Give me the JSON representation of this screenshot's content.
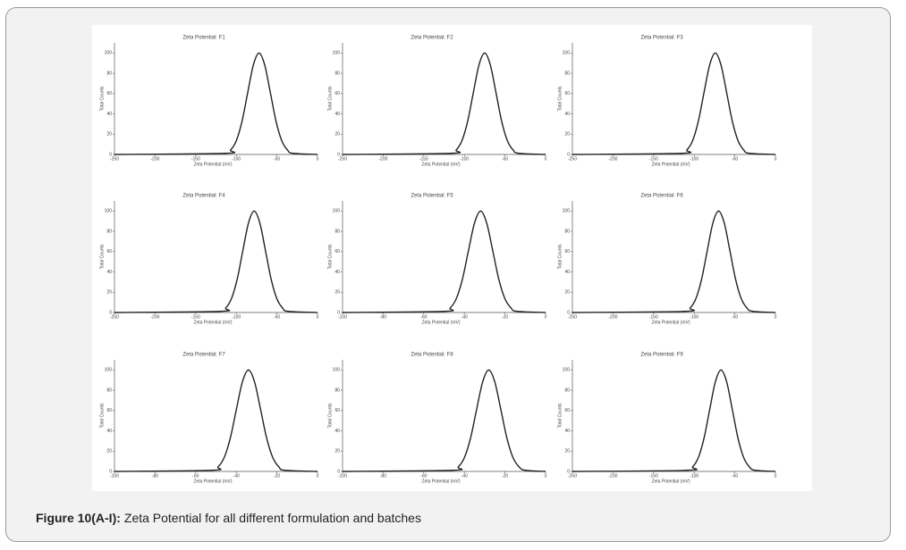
{
  "chart_data": [
    {
      "type": "line",
      "title": "Zeta Potential: F1",
      "x_label": "Zeta Potential (mV)",
      "y_label": "Total Counts",
      "x": [
        -250,
        -114,
        -107,
        -100,
        -93,
        -86,
        -79,
        -72,
        -65,
        -58,
        -51,
        -44,
        -37,
        -30,
        0
      ],
      "values": [
        0,
        1.1,
        4.4,
        13.5,
        32.5,
        60.7,
        88.2,
        100,
        88.2,
        60.7,
        32.5,
        13.5,
        4.4,
        1.1,
        0
      ],
      "color": "#222222",
      "xlim": [
        -250,
        0
      ],
      "xticks": [
        -250,
        -200,
        -150,
        -100,
        -50,
        0
      ],
      "ylim": [
        0,
        110
      ],
      "yticks": [
        0,
        20,
        40,
        60,
        80,
        100
      ]
    },
    {
      "type": "line",
      "title": "Zeta Potential: F2",
      "x_label": "Zeta Potential (mV)",
      "y_label": "Total Counts",
      "x": [
        -250,
        -117,
        -110,
        -103,
        -96,
        -89,
        -82,
        -75,
        -68,
        -61,
        -54,
        -47,
        -40,
        -33,
        0
      ],
      "values": [
        0,
        1.1,
        4.4,
        13.5,
        32.5,
        60.7,
        88.2,
        100,
        88.2,
        60.7,
        32.5,
        13.5,
        4.4,
        1.1,
        0
      ],
      "color": "#222222",
      "xlim": [
        -250,
        0
      ],
      "xticks": [
        -250,
        -200,
        -150,
        -100,
        -50,
        0
      ],
      "ylim": [
        0,
        110
      ],
      "yticks": [
        0,
        20,
        40,
        60,
        80,
        100
      ]
    },
    {
      "type": "line",
      "title": "Zeta Potential: F3",
      "x_label": "Zeta Potential (mV)",
      "y_label": "Total Counts",
      "x": [
        -250,
        -116,
        -109,
        -102,
        -95,
        -88,
        -81,
        -74,
        -67,
        -60,
        -53,
        -46,
        -39,
        -32,
        0
      ],
      "values": [
        0,
        1.1,
        4.4,
        13.5,
        32.5,
        60.7,
        88.2,
        100,
        88.2,
        60.7,
        32.5,
        13.5,
        4.4,
        1.1,
        0
      ],
      "color": "#222222",
      "xlim": [
        -250,
        0
      ],
      "xticks": [
        -250,
        -200,
        -150,
        -100,
        -50,
        0
      ],
      "ylim": [
        0,
        110
      ],
      "yticks": [
        0,
        20,
        40,
        60,
        80,
        100
      ]
    },
    {
      "type": "line",
      "title": "Zeta Potential: F4",
      "x_label": "Zeta Potential (mV)",
      "y_label": "Total Counts",
      "x": [
        -250,
        -120,
        -113,
        -106,
        -99,
        -92,
        -85,
        -78,
        -71,
        -64,
        -57,
        -50,
        -43,
        -36,
        0
      ],
      "values": [
        0,
        1.1,
        4.4,
        13.5,
        32.5,
        60.7,
        88.2,
        100,
        88.2,
        60.7,
        32.5,
        13.5,
        4.4,
        1.1,
        0
      ],
      "color": "#222222",
      "xlim": [
        -250,
        0
      ],
      "xticks": [
        -250,
        -200,
        -150,
        -100,
        -50,
        0
      ],
      "ylim": [
        0,
        110
      ],
      "yticks": [
        0,
        20,
        40,
        60,
        80,
        100
      ]
    },
    {
      "type": "line",
      "title": "Zeta Potential: F5",
      "x_label": "Zeta Potential (mV)",
      "y_label": "Total Counts",
      "x": [
        -100,
        -50,
        -47,
        -44,
        -41,
        -38,
        -35,
        -32,
        -29,
        -26,
        -23,
        -20,
        -17,
        -14,
        0
      ],
      "values": [
        0,
        1.1,
        4.4,
        13.5,
        32.5,
        60.7,
        88.2,
        100,
        88.2,
        60.7,
        32.5,
        13.5,
        4.4,
        1.1,
        0
      ],
      "color": "#222222",
      "xlim": [
        -100,
        0
      ],
      "xticks": [
        -100,
        -80,
        -60,
        -40,
        -20,
        0
      ],
      "ylim": [
        0,
        110
      ],
      "yticks": [
        0,
        20,
        40,
        60,
        80,
        100
      ]
    },
    {
      "type": "line",
      "title": "Zeta Potential: F6",
      "x_label": "Zeta Potential (mV)",
      "y_label": "Total Counts",
      "x": [
        -250,
        -112,
        -105,
        -98,
        -91,
        -84,
        -77,
        -70,
        -63,
        -56,
        -49,
        -42,
        -35,
        -28,
        0
      ],
      "values": [
        0,
        1.1,
        4.4,
        13.5,
        32.5,
        60.7,
        88.2,
        100,
        88.2,
        60.7,
        32.5,
        13.5,
        4.4,
        1.1,
        0
      ],
      "color": "#222222",
      "xlim": [
        -250,
        0
      ],
      "xticks": [
        -250,
        -200,
        -150,
        -100,
        -50,
        0
      ],
      "ylim": [
        0,
        110
      ],
      "yticks": [
        0,
        20,
        40,
        60,
        80,
        100
      ]
    },
    {
      "type": "line",
      "title": "Zeta Potential: F7",
      "x_label": "Zeta Potential (mV)",
      "y_label": "Total Counts",
      "x": [
        -100,
        -52,
        -49,
        -46,
        -43,
        -40,
        -37,
        -34,
        -31,
        -28,
        -25,
        -22,
        -19,
        -16,
        0
      ],
      "values": [
        0,
        1.1,
        4.4,
        13.5,
        32.5,
        60.7,
        88.2,
        100,
        88.2,
        60.7,
        32.5,
        13.5,
        4.4,
        1.1,
        0
      ],
      "color": "#222222",
      "xlim": [
        -100,
        0
      ],
      "xticks": [
        -100,
        -80,
        -60,
        -40,
        -20,
        0
      ],
      "ylim": [
        0,
        110
      ],
      "yticks": [
        0,
        20,
        40,
        60,
        80,
        100
      ]
    },
    {
      "type": "line",
      "title": "Zeta Potential: F8",
      "x_label": "Zeta Potential (mV)",
      "y_label": "Total Counts",
      "x": [
        -100,
        -46,
        -43,
        -40,
        -37,
        -34,
        -31,
        -28,
        -25,
        -22,
        -19,
        -16,
        -13,
        -10,
        0
      ],
      "values": [
        0,
        1.1,
        4.4,
        13.5,
        32.5,
        60.7,
        88.2,
        100,
        88.2,
        60.7,
        32.5,
        13.5,
        4.4,
        1.1,
        0
      ],
      "color": "#222222",
      "xlim": [
        -100,
        0
      ],
      "xticks": [
        -100,
        -80,
        -60,
        -40,
        -20,
        0
      ],
      "ylim": [
        0,
        110
      ],
      "yticks": [
        0,
        20,
        40,
        60,
        80,
        100
      ]
    },
    {
      "type": "line",
      "title": "Zeta Potential: F9",
      "x_label": "Zeta Potential (mV)",
      "y_label": "Total Counts",
      "x": [
        -250,
        -109,
        -102,
        -95,
        -88,
        -81,
        -74,
        -67,
        -60,
        -53,
        -46,
        -39,
        -32,
        -25,
        0
      ],
      "values": [
        0,
        1.1,
        4.4,
        13.5,
        32.5,
        60.7,
        88.2,
        100,
        88.2,
        60.7,
        32.5,
        13.5,
        4.4,
        1.1,
        0
      ],
      "color": "#222222",
      "xlim": [
        -250,
        0
      ],
      "xticks": [
        -250,
        -200,
        -150,
        -100,
        -50,
        0
      ],
      "ylim": [
        0,
        110
      ],
      "yticks": [
        0,
        20,
        40,
        60,
        80,
        100
      ]
    }
  ],
  "caption": {
    "label": "Figure 10(A-I):",
    "text": "Zeta Potential for all different formulation and batches"
  }
}
